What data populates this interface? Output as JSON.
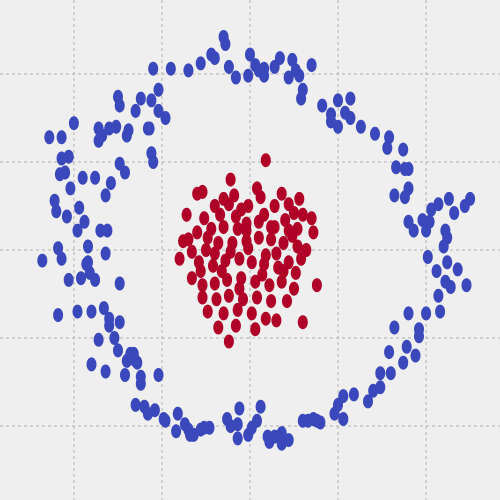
{
  "chart_data": {
    "type": "scatter",
    "title": "",
    "xlabel": "",
    "ylabel": "",
    "xlim": [
      -1.42,
      1.42
    ],
    "ylim": [
      -1.42,
      1.42
    ],
    "grid": true,
    "grid_ticks_x": [
      -1.0,
      -0.5,
      0.0,
      0.5,
      1.0
    ],
    "grid_ticks_y": [
      -1.0,
      -0.5,
      0.0,
      0.5,
      1.0
    ],
    "legend": "none",
    "point_shape": "vertical ellipse",
    "series": [
      {
        "color": "#3a48bb",
        "points": [
          [
            -0.15,
            1.21
          ],
          [
            -0.14,
            1.17
          ],
          [
            -0.2,
            1.09
          ],
          [
            -0.12,
            1.04
          ],
          [
            -0.28,
            1.06
          ],
          [
            -0.35,
            1.02
          ],
          [
            -0.45,
            1.03
          ],
          [
            -0.55,
            1.03
          ],
          [
            -0.52,
            0.91
          ],
          [
            -0.56,
            0.85
          ],
          [
            -0.62,
            0.86
          ],
          [
            -0.52,
            0.79
          ],
          [
            -0.48,
            0.75
          ],
          [
            -0.65,
            0.79
          ],
          [
            -0.74,
            0.82
          ],
          [
            -0.75,
            0.87
          ],
          [
            -0.7,
            0.65
          ],
          [
            -0.76,
            0.7
          ],
          [
            -0.8,
            0.69
          ],
          [
            -0.86,
            0.69
          ],
          [
            -0.69,
            0.68
          ],
          [
            -0.57,
            0.69
          ],
          [
            -0.58,
            0.69
          ],
          [
            -0.86,
            0.62
          ],
          [
            -0.84,
            0.65
          ],
          [
            -1.0,
            0.72
          ],
          [
            -1.07,
            0.64
          ],
          [
            -1.14,
            0.64
          ],
          [
            -1.07,
            0.52
          ],
          [
            -1.03,
            0.53
          ],
          [
            -1.05,
            0.44
          ],
          [
            -1.08,
            0.43
          ],
          [
            -0.95,
            0.41
          ],
          [
            -0.88,
            0.41
          ],
          [
            -0.79,
            0.38
          ],
          [
            -0.82,
            0.31
          ],
          [
            -0.71,
            0.44
          ],
          [
            -0.55,
            0.5
          ],
          [
            -0.56,
            0.55
          ],
          [
            -0.74,
            0.49
          ],
          [
            -1.02,
            0.35
          ],
          [
            -1.1,
            0.22
          ],
          [
            -1.11,
            0.28
          ],
          [
            -0.97,
            0.24
          ],
          [
            -1.04,
            0.19
          ],
          [
            -0.94,
            0.16
          ],
          [
            -0.98,
            0.11
          ],
          [
            -0.85,
            0.11
          ],
          [
            -0.81,
            0.11
          ],
          [
            -0.82,
            -0.02
          ],
          [
            -0.92,
            0.02
          ],
          [
            -1.09,
            0.01
          ],
          [
            -1.18,
            -0.06
          ],
          [
            -1.07,
            -0.05
          ],
          [
            -0.92,
            -0.07
          ],
          [
            -0.93,
            -0.08
          ],
          [
            -0.91,
            -0.13
          ],
          [
            -0.96,
            -0.16
          ],
          [
            -1.03,
            -0.17
          ],
          [
            -0.88,
            -0.17
          ],
          [
            -0.74,
            -0.19
          ],
          [
            -0.83,
            -0.33
          ],
          [
            -0.9,
            -0.35
          ],
          [
            -0.98,
            -0.35
          ],
          [
            -1.09,
            -0.37
          ],
          [
            -0.8,
            -0.39
          ],
          [
            -0.8,
            -0.43
          ],
          [
            -0.74,
            -0.41
          ],
          [
            -0.77,
            -0.5
          ],
          [
            -0.86,
            -0.51
          ],
          [
            -0.75,
            -0.57
          ],
          [
            -0.68,
            -0.59
          ],
          [
            -0.7,
            -0.63
          ],
          [
            -0.65,
            -0.63
          ],
          [
            -0.66,
            -0.59
          ],
          [
            -0.69,
            -0.62
          ],
          [
            -0.64,
            -0.64
          ],
          [
            -0.9,
            -0.65
          ],
          [
            -0.82,
            -0.69
          ],
          [
            -0.71,
            -0.71
          ],
          [
            -0.62,
            -0.72
          ],
          [
            -0.52,
            -0.71
          ],
          [
            -0.62,
            -0.76
          ],
          [
            -0.65,
            -0.88
          ],
          [
            -0.6,
            -0.89
          ],
          [
            -0.58,
            -0.93
          ],
          [
            -0.54,
            -0.91
          ],
          [
            -0.49,
            -0.96
          ],
          [
            -0.48,
            -0.97
          ],
          [
            -0.41,
            -0.93
          ],
          [
            -0.37,
            -0.99
          ],
          [
            -0.42,
            -1.03
          ],
          [
            -0.35,
            -1.02
          ],
          [
            -0.34,
            -1.05
          ],
          [
            -0.28,
            -1.02
          ],
          [
            -0.26,
            -1.01
          ],
          [
            -0.32,
            -1.05
          ],
          [
            -0.23,
            -1.01
          ],
          [
            -0.11,
            -1.0
          ],
          [
            -0.07,
            -0.99
          ],
          [
            -0.13,
            -0.96
          ],
          [
            -0.06,
            -0.9
          ],
          [
            0.06,
            -0.89
          ],
          [
            0.04,
            -0.97
          ],
          [
            0.01,
            -1.01
          ],
          [
            -0.07,
            -1.07
          ],
          [
            -0.01,
            -1.05
          ],
          [
            0.1,
            -1.06
          ],
          [
            0.18,
            -1.04
          ],
          [
            0.18,
            -1.1
          ],
          [
            0.22,
            -1.08
          ],
          [
            0.11,
            -1.09
          ],
          [
            0.14,
            -1.06
          ],
          [
            0.3,
            -0.97
          ],
          [
            0.36,
            -0.96
          ],
          [
            0.33,
            -0.97
          ],
          [
            0.4,
            -0.98
          ],
          [
            0.38,
            -0.97
          ],
          [
            0.48,
            -0.93
          ],
          [
            0.53,
            -0.96
          ],
          [
            0.5,
            -0.88
          ],
          [
            0.53,
            -0.83
          ],
          [
            0.59,
            -0.82
          ],
          [
            0.67,
            -0.86
          ],
          [
            0.7,
            -0.8
          ],
          [
            0.74,
            -0.78
          ],
          [
            0.74,
            -0.7
          ],
          [
            0.8,
            -0.7
          ],
          [
            0.87,
            -0.64
          ],
          [
            0.79,
            -0.58
          ],
          [
            0.94,
            -0.6
          ],
          [
            0.89,
            -0.55
          ],
          [
            0.96,
            -0.49
          ],
          [
            0.96,
            -0.45
          ],
          [
            0.82,
            -0.44
          ],
          [
            0.9,
            -0.36
          ],
          [
            1.0,
            -0.36
          ],
          [
            1.08,
            -0.35
          ],
          [
            1.07,
            -0.26
          ],
          [
            1.14,
            -0.21
          ],
          [
            1.11,
            -0.18
          ],
          [
            1.06,
            -0.12
          ],
          [
            1.01,
            -0.04
          ],
          [
            1.0,
            0.11
          ],
          [
            1.1,
            0.02
          ],
          [
            1.18,
            -0.11
          ],
          [
            1.23,
            -0.2
          ],
          [
            1.12,
            -0.07
          ],
          [
            1.12,
            0.07
          ],
          [
            1.11,
            0.11
          ],
          [
            1.02,
            0.16
          ],
          [
            0.9,
            0.16
          ],
          [
            0.93,
            0.11
          ],
          [
            0.98,
            0.17
          ],
          [
            1.03,
            0.23
          ],
          [
            1.07,
            0.26
          ],
          [
            1.13,
            0.29
          ],
          [
            1.22,
            0.25
          ],
          [
            1.25,
            0.29
          ],
          [
            1.16,
            0.21
          ],
          [
            0.88,
            0.3
          ],
          [
            0.9,
            0.35
          ],
          [
            0.82,
            0.31
          ],
          [
            0.9,
            0.46
          ],
          [
            0.88,
            0.46
          ],
          [
            0.83,
            0.47
          ],
          [
            0.78,
            0.58
          ],
          [
            0.87,
            0.57
          ],
          [
            0.79,
            0.64
          ],
          [
            0.71,
            0.66
          ],
          [
            0.63,
            0.7
          ],
          [
            0.57,
            0.75
          ],
          [
            0.54,
            0.78
          ],
          [
            0.46,
            0.73
          ],
          [
            0.5,
            0.7
          ],
          [
            0.5,
            0.85
          ],
          [
            0.57,
            0.86
          ],
          [
            0.46,
            0.77
          ],
          [
            0.41,
            0.82
          ],
          [
            0.29,
            0.86
          ],
          [
            0.3,
            0.91
          ],
          [
            0.28,
            0.99
          ],
          [
            0.22,
            0.98
          ],
          [
            0.35,
            1.05
          ],
          [
            0.26,
            1.02
          ],
          [
            0.24,
            1.08
          ],
          [
            0.17,
            1.09
          ],
          [
            0.08,
            0.99
          ],
          [
            -0.01,
            0.99
          ],
          [
            -0.08,
            0.98
          ],
          [
            0.0,
            1.11
          ],
          [
            0.05,
            1.02
          ],
          [
            0.08,
            1.03
          ],
          [
            0.03,
            1.05
          ],
          [
            0.14,
            1.04
          ],
          [
            -0.22,
            1.11
          ]
        ]
      },
      {
        "color": "#b00126",
        "points": [
          [
            0.09,
            0.51
          ],
          [
            -0.11,
            0.4
          ],
          [
            -0.3,
            0.32
          ],
          [
            -0.27,
            0.33
          ],
          [
            -0.15,
            0.29
          ],
          [
            -0.2,
            0.25
          ],
          [
            -0.12,
            0.26
          ],
          [
            -0.05,
            0.23
          ],
          [
            -0.01,
            0.25
          ],
          [
            0.06,
            0.3
          ],
          [
            0.14,
            0.25
          ],
          [
            0.22,
            0.26
          ],
          [
            0.25,
            0.21
          ],
          [
            0.3,
            0.2
          ],
          [
            0.35,
            0.18
          ],
          [
            0.27,
            0.12
          ],
          [
            0.22,
            0.11
          ],
          [
            0.12,
            0.13
          ],
          [
            0.05,
            0.16
          ],
          [
            -0.02,
            0.15
          ],
          [
            -0.07,
            0.12
          ],
          [
            -0.15,
            0.13
          ],
          [
            -0.22,
            0.12
          ],
          [
            -0.3,
            0.1
          ],
          [
            -0.35,
            0.06
          ],
          [
            -0.33,
            -0.01
          ],
          [
            -0.25,
            0.0
          ],
          [
            -0.18,
            0.04
          ],
          [
            -0.1,
            0.04
          ],
          [
            -0.02,
            0.05
          ],
          [
            0.05,
            0.07
          ],
          [
            0.12,
            0.06
          ],
          [
            0.19,
            0.04
          ],
          [
            0.27,
            0.02
          ],
          [
            0.32,
            0.0
          ],
          [
            0.29,
            -0.05
          ],
          [
            0.22,
            -0.07
          ],
          [
            0.16,
            -0.1
          ],
          [
            0.08,
            -0.08
          ],
          [
            0.01,
            -0.07
          ],
          [
            -0.06,
            -0.05
          ],
          [
            -0.14,
            -0.06
          ],
          [
            -0.21,
            -0.09
          ],
          [
            -0.28,
            -0.12
          ],
          [
            -0.33,
            -0.16
          ],
          [
            -0.27,
            -0.2
          ],
          [
            -0.2,
            -0.19
          ],
          [
            -0.13,
            -0.17
          ],
          [
            -0.05,
            -0.16
          ],
          [
            0.03,
            -0.18
          ],
          [
            0.11,
            -0.2
          ],
          [
            0.18,
            -0.18
          ],
          [
            0.25,
            -0.22
          ],
          [
            0.21,
            -0.29
          ],
          [
            0.12,
            -0.29
          ],
          [
            0.04,
            -0.27
          ],
          [
            -0.04,
            -0.28
          ],
          [
            -0.12,
            -0.26
          ],
          [
            -0.19,
            -0.28
          ],
          [
            -0.24,
            -0.35
          ],
          [
            -0.15,
            -0.36
          ],
          [
            -0.07,
            -0.34
          ],
          [
            0.01,
            -0.36
          ],
          [
            0.09,
            -0.39
          ],
          [
            0.15,
            -0.4
          ],
          [
            0.03,
            -0.45
          ],
          [
            -0.08,
            -0.43
          ],
          [
            -0.18,
            -0.44
          ],
          [
            -0.12,
            -0.52
          ],
          [
            0.3,
            -0.41
          ],
          [
            0.38,
            -0.2
          ],
          [
            0.36,
            0.1
          ],
          [
            -0.36,
            0.2
          ],
          [
            -0.4,
            -0.05
          ],
          [
            -0.38,
            0.05
          ],
          [
            -0.26,
            0.18
          ],
          [
            -0.09,
            0.31
          ],
          [
            0.04,
            0.35
          ],
          [
            0.18,
            0.32
          ],
          [
            0.28,
            0.29
          ],
          [
            -0.16,
            -0.12
          ],
          [
            -0.06,
            -0.22
          ],
          [
            0.07,
            -0.14
          ],
          [
            0.15,
            -0.02
          ],
          [
            0.24,
            0.08
          ],
          [
            -0.24,
            0.07
          ],
          [
            -0.29,
            -0.07
          ],
          [
            -0.17,
            0.2
          ],
          [
            0.08,
            0.2
          ],
          [
            0.2,
            0.17
          ],
          [
            -0.01,
            0.01
          ],
          [
            0.09,
            -0.03
          ],
          [
            -0.11,
            -0.01
          ],
          [
            -0.2,
            -0.02
          ],
          [
            0.19,
            -0.12
          ],
          [
            0.26,
            -0.13
          ],
          [
            -0.27,
            -0.27
          ],
          [
            -0.02,
            0.11
          ],
          [
            0.14,
            0.13
          ],
          [
            -0.08,
            0.19
          ]
        ]
      }
    ]
  }
}
